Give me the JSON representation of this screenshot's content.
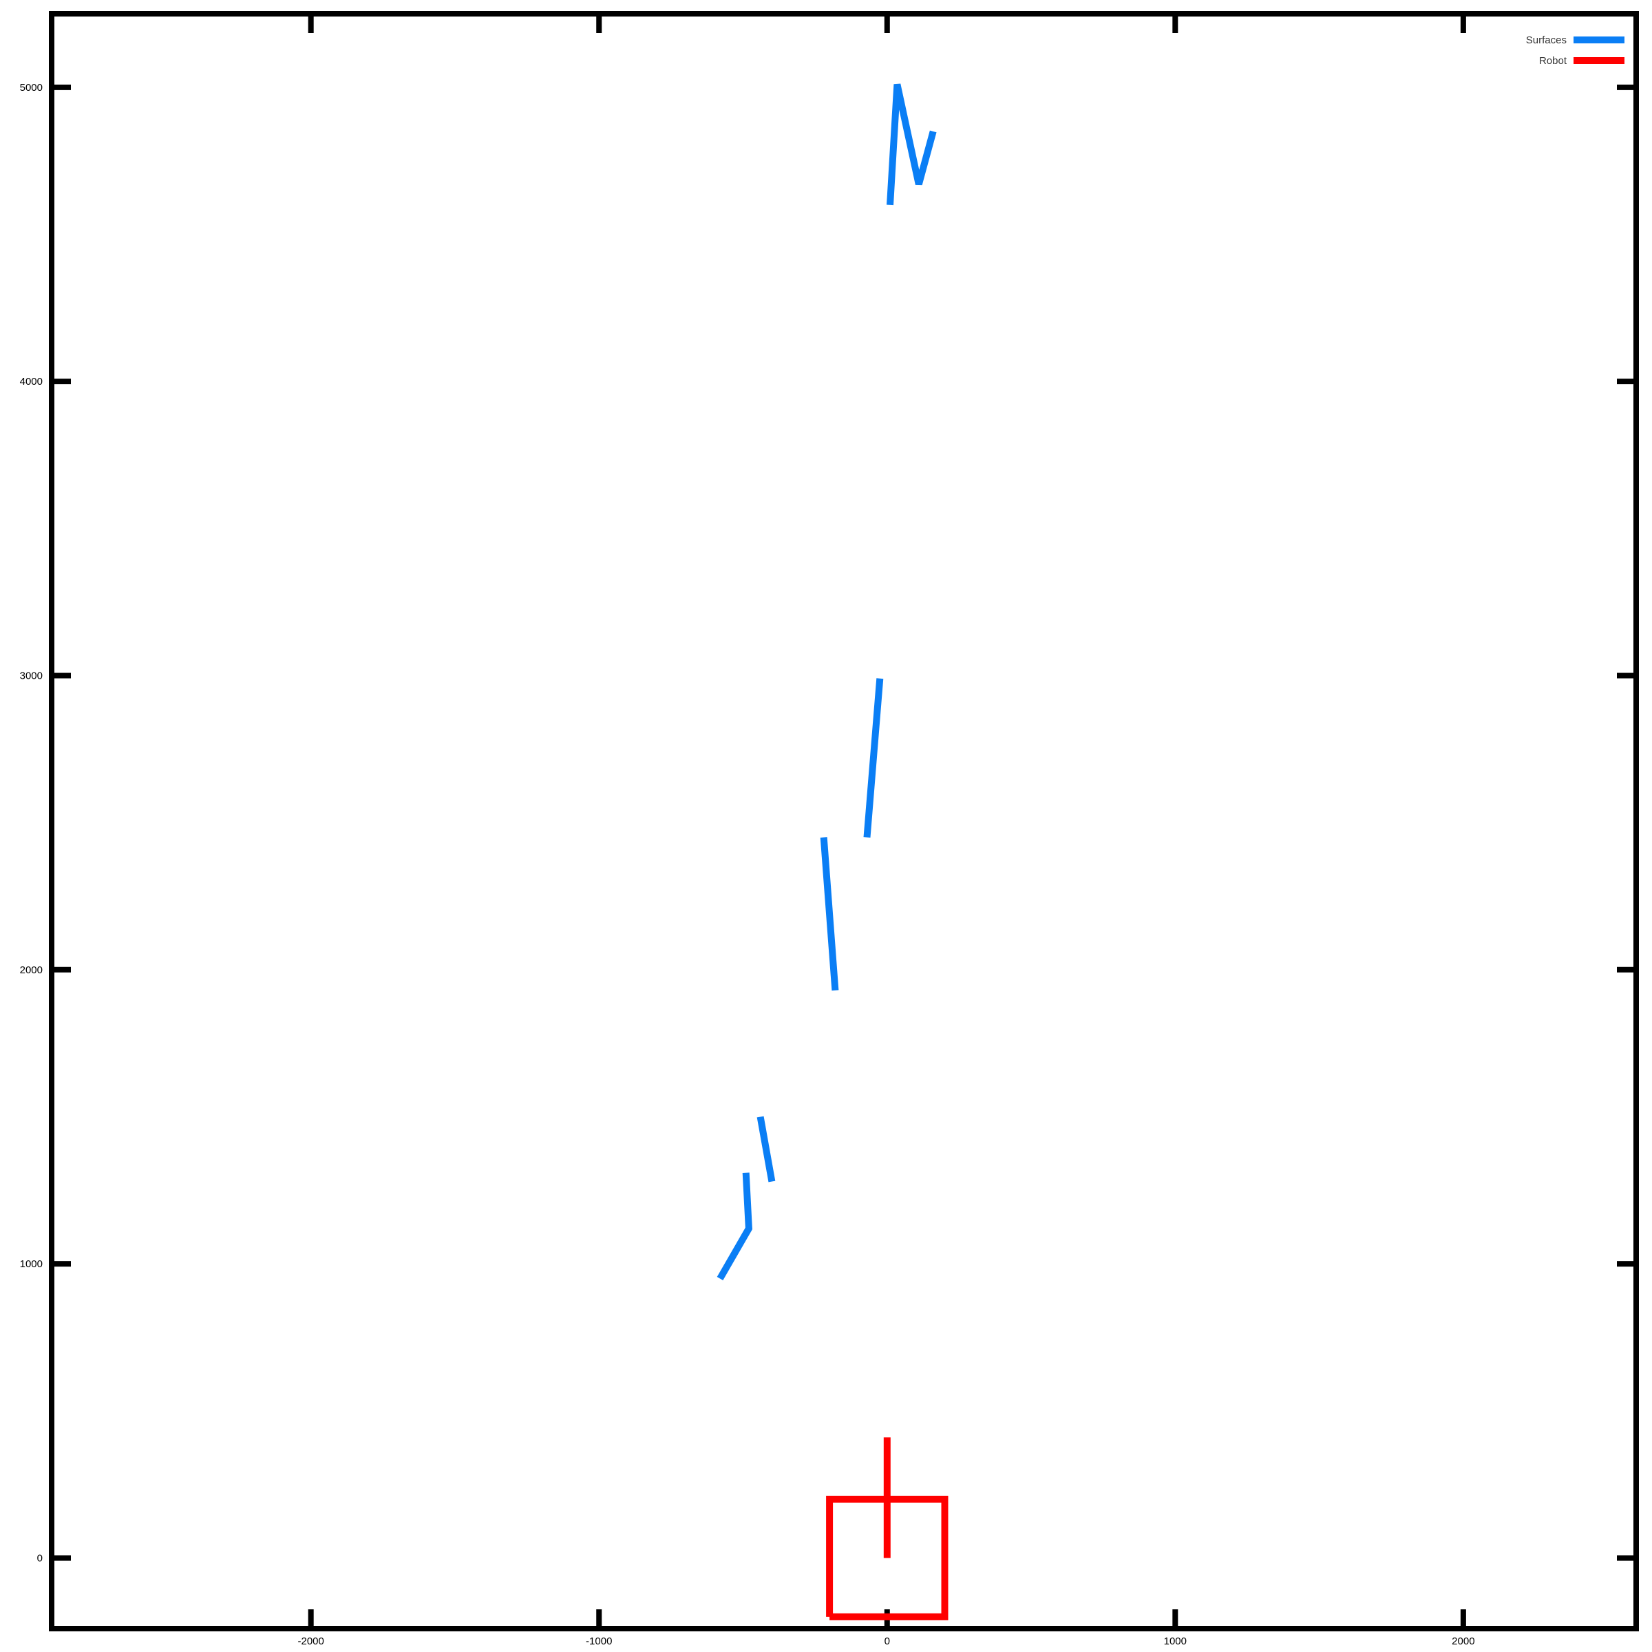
{
  "chart_data": {
    "type": "line",
    "title": "",
    "xlabel": "",
    "ylabel": "",
    "xlim": [
      -2900,
      2600
    ],
    "ylim": [
      -240,
      5250
    ],
    "xticks": [
      -2000,
      -1000,
      0,
      1000,
      2000
    ],
    "yticks": [
      0,
      1000,
      2000,
      3000,
      4000,
      5000
    ],
    "xtick_labels": [
      "-2000",
      "-1000",
      "0",
      "1000",
      "2000"
    ],
    "ytick_labels": [
      "0",
      "1000",
      "2000",
      "3000",
      "4000",
      "5000"
    ],
    "grid": false,
    "legend_position": "top-right",
    "series": [
      {
        "name": "Surfaces",
        "color": "#0a7ef5",
        "segments": [
          [
            [
              -580,
              950
            ],
            [
              -480,
              1120
            ],
            [
              -490,
              1310
            ]
          ],
          [
            [
              -440,
              1500
            ],
            [
              -400,
              1280
            ]
          ],
          [
            [
              -220,
              2450
            ],
            [
              -180,
              1930
            ]
          ],
          [
            [
              -70,
              2450
            ],
            [
              -25,
              2990
            ]
          ],
          [
            [
              10,
              4600
            ],
            [
              35,
              5010
            ],
            [
              110,
              4670
            ],
            [
              160,
              4850
            ]
          ]
        ]
      },
      {
        "name": "Robot",
        "color": "#ff0000",
        "segments": [
          [
            [
              -200,
              -200
            ],
            [
              200,
              -200
            ],
            [
              200,
              200
            ],
            [
              -200,
              200
            ],
            [
              -200,
              -200
            ]
          ],
          [
            [
              0,
              0
            ],
            [
              0,
              410
            ]
          ]
        ]
      }
    ]
  }
}
